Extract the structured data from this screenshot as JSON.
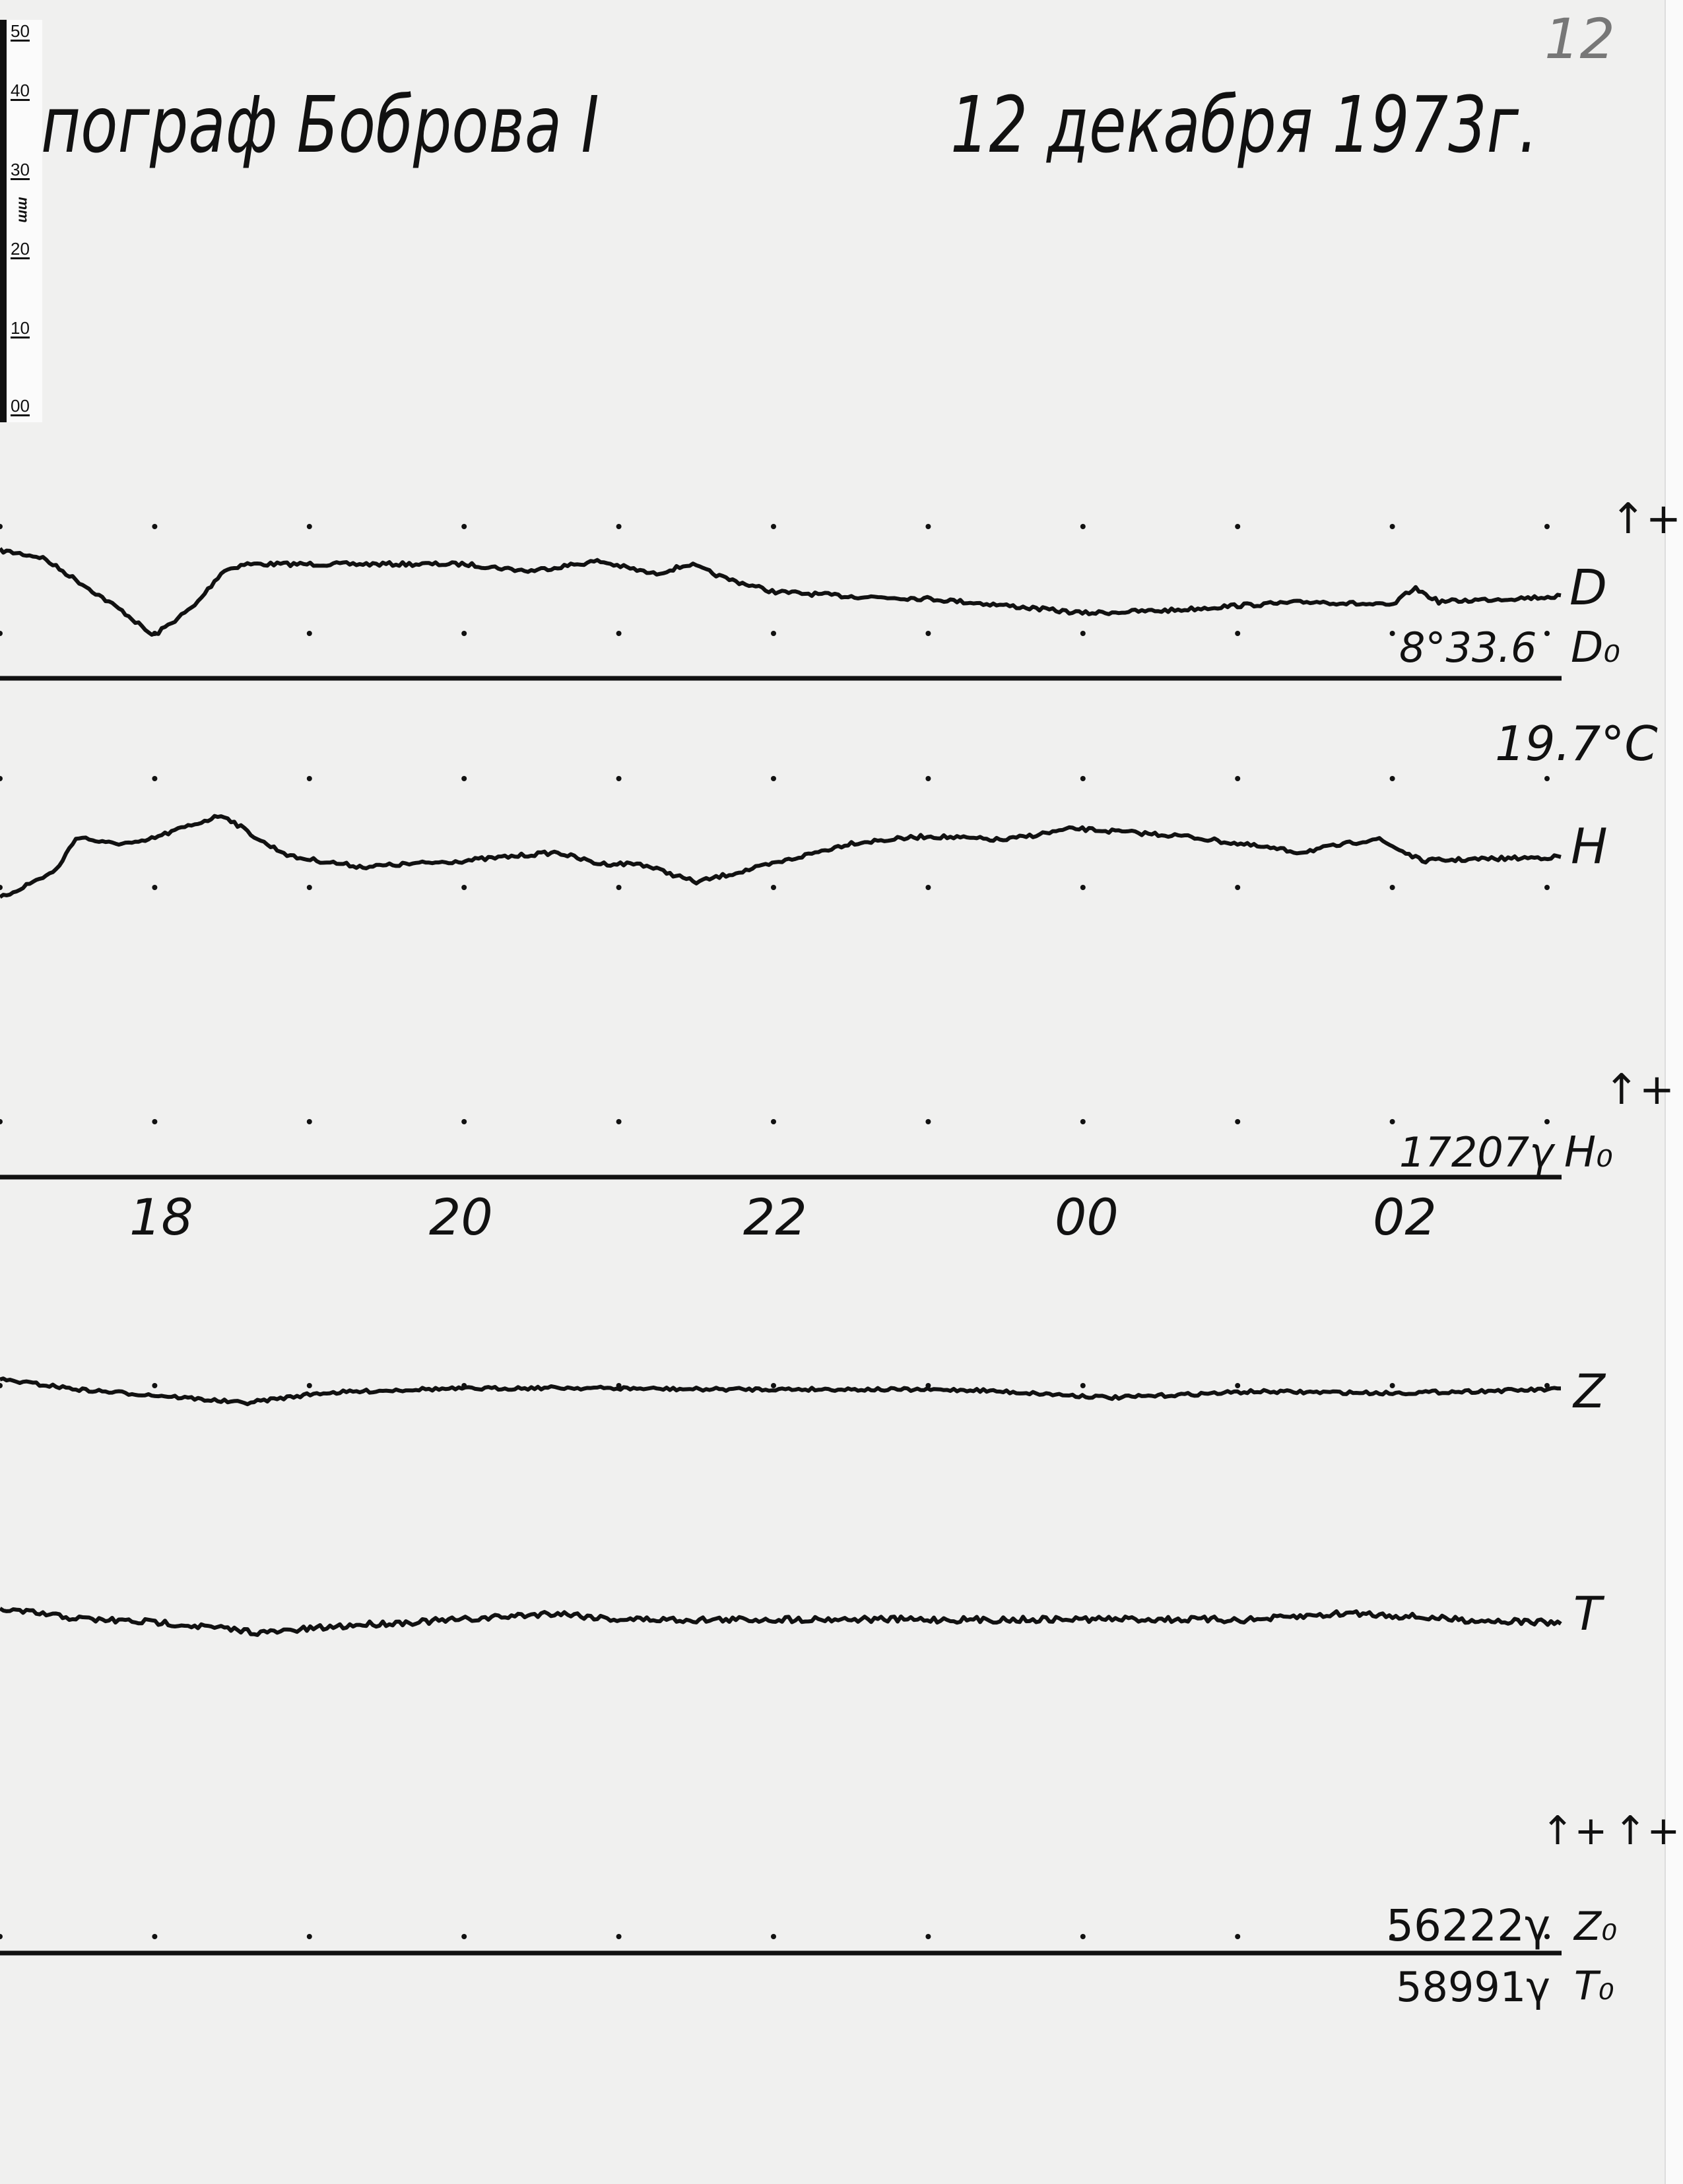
{
  "header": {
    "title": "пограф Боброва I",
    "date": "12 декабря 1973г.",
    "sheet_number": "12"
  },
  "ruler": {
    "unit": "mm",
    "labels": [
      "50",
      "40",
      "30",
      "20",
      "10",
      "00"
    ]
  },
  "labels": {
    "D": "D",
    "D0": "D₀",
    "D0_value": "8°33.6",
    "temperature": "19.7°C",
    "H": "H",
    "H0": "H₀",
    "H0_value": "17207γ",
    "Z": "Z",
    "T": "T",
    "Z0": "Z₀",
    "Z0_value": "56222γ",
    "T0": "T₀",
    "T0_value": "58991γ",
    "plus_arrow": "↑+"
  },
  "chart_data": {
    "type": "line",
    "title": "",
    "xlabel": "",
    "ylabel": "",
    "x_tick_labels": [
      "18",
      "20",
      "22",
      "00",
      "02"
    ],
    "x_ticks_hours": [
      18,
      20,
      22,
      24,
      26
    ],
    "xlim_hours": [
      17,
      27.1
    ],
    "grid": false,
    "hour_marks": true,
    "ink_color": "#111111",
    "paper_color": "#f0f0ef",
    "series": [
      {
        "name": "D",
        "baseline": "D0",
        "x": [
          17,
          17.27,
          17.54,
          17.81,
          17.99,
          18.26,
          18.44,
          18.58,
          19,
          20,
          20.42,
          20.87,
          21.23,
          21.46,
          21.68,
          22,
          22.5,
          23,
          23.5,
          24,
          24.6,
          25,
          25.5,
          26,
          26.14,
          26.3,
          27.1
        ],
        "y_mm": [
          16.7,
          15.8,
          12.2,
          8.5,
          5.5,
          9.5,
          14.0,
          14.9,
          14.9,
          14.9,
          14.0,
          15.3,
          13.6,
          14.9,
          13.1,
          11.3,
          10.7,
          10.4,
          9.5,
          8.5,
          8.9,
          9.5,
          10.0,
          9.5,
          11.8,
          10.0,
          10.7
        ]
      },
      {
        "name": "H",
        "baseline": "H0",
        "x": [
          17,
          17.36,
          17.5,
          17.68,
          17.9,
          18.17,
          18.44,
          18.71,
          18.89,
          19.34,
          20,
          20.6,
          20.87,
          21.14,
          21.5,
          22,
          22.5,
          23,
          23.49,
          23.94,
          24.66,
          25.4,
          25.9,
          26.19,
          27.1
        ],
        "y_mm": [
          36.4,
          40.0,
          44.5,
          43.6,
          43.6,
          45.5,
          47.3,
          43.6,
          41.8,
          40.5,
          41.3,
          42.4,
          40.9,
          40.9,
          38.5,
          40.9,
          43.6,
          44.5,
          44.0,
          45.5,
          44.5,
          42.4,
          44.2,
          41.3,
          41.8
        ]
      },
      {
        "name": "Z",
        "baseline": "Z0",
        "x": [
          17,
          17.54,
          18.08,
          18.58,
          19.07,
          19.7,
          20.6,
          21.5,
          22.4,
          23.3,
          24.2,
          25.1,
          26.0,
          27.1
        ],
        "y_mm": [
          74.9,
          73.5,
          72.7,
          71.8,
          73.1,
          73.6,
          73.8,
          73.6,
          73.6,
          73.5,
          72.5,
          73.3,
          73.1,
          73.6
        ]
      },
      {
        "name": "T",
        "baseline": "Z0",
        "x": [
          17,
          17.54,
          18.08,
          18.71,
          19.34,
          19.97,
          20.6,
          20.96,
          21.5,
          22.4,
          23.3,
          24.2,
          25.1,
          25.74,
          26.46,
          27.1
        ],
        "y_mm": [
          44.9,
          43.6,
          43.1,
          41.8,
          42.9,
          43.5,
          44.4,
          43.6,
          43.5,
          43.6,
          43.5,
          43.6,
          43.5,
          44.4,
          43.5,
          43.1
        ]
      }
    ]
  }
}
